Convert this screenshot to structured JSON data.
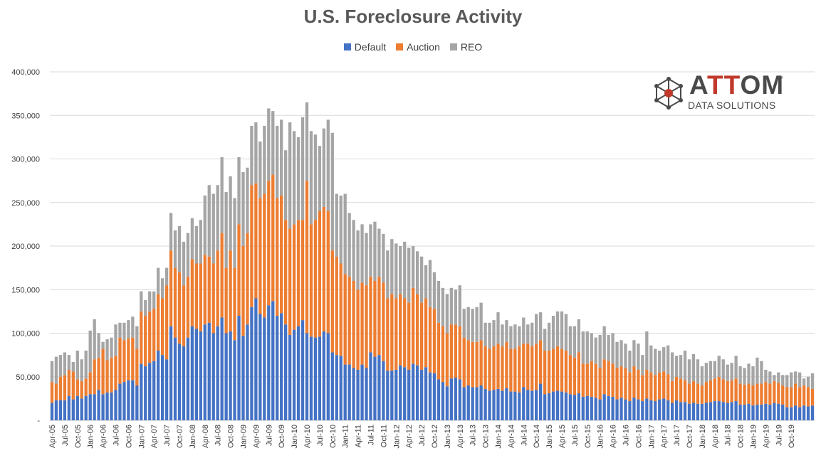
{
  "chart_data": {
    "type": "bar",
    "stacked": true,
    "title": "U.S. Foreclosure Activity",
    "legend_position": "top",
    "grid": true,
    "ylim": [
      0,
      400000
    ],
    "yticks": [
      "-",
      "50,000",
      "100,000",
      "150,000",
      "200,000",
      "250,000",
      "300,000",
      "350,000",
      "400,000"
    ],
    "x_tick_labels": [
      "Apr-05",
      "Jul-05",
      "Oct-05",
      "Jan-06",
      "Apr-06",
      "Jul-06",
      "Oct-06",
      "Jan-07",
      "Apr-07",
      "Jul-07",
      "Oct-07",
      "Jan-08",
      "Apr-08",
      "Jul-08",
      "Oct-08",
      "Jan-09",
      "Apr-09",
      "Jul-09",
      "Oct-09",
      "Jan-10",
      "Apr-10",
      "Jul-10",
      "Oct-10",
      "Jan-11",
      "Apr-11",
      "Jul-11",
      "Oct-11",
      "Jan-12",
      "Apr-12",
      "Jul-12",
      "Oct-12",
      "Jan-13",
      "Apr-13",
      "Jul-13",
      "Oct-13",
      "Jan-14",
      "Apr-14",
      "Jul-14",
      "Oct-14",
      "Jan-15",
      "Apr-15",
      "Jul-15",
      "Oct-15",
      "Jan-16",
      "Apr-16",
      "Jul-16",
      "Oct-16",
      "Jan-17",
      "Apr-17",
      "Jul-17",
      "Oct-17",
      "Jan-18",
      "Apr-18",
      "Jul-18",
      "Oct-18",
      "Jan-19",
      "Apr-19",
      "Jul-19",
      "Oct-19"
    ],
    "series": [
      {
        "name": "Default",
        "color": "#4472C4",
        "values": [
          20000,
          23000,
          23000,
          23000,
          28000,
          24000,
          28000,
          25000,
          28000,
          30000,
          30000,
          35000,
          30000,
          32000,
          32000,
          35000,
          42000,
          44000,
          46000,
          46000,
          40000,
          65000,
          62000,
          66000,
          68000,
          80000,
          75000,
          70000,
          108000,
          95000,
          88000,
          85000,
          95000,
          108000,
          105000,
          102000,
          110000,
          112000,
          100000,
          108000,
          118000,
          100000,
          102000,
          92000,
          120000,
          97000,
          110000,
          130000,
          140000,
          122000,
          118000,
          132000,
          137000,
          120000,
          123000,
          110000,
          98000,
          104000,
          108000,
          115000,
          100000,
          96000,
          95000,
          96000,
          102000,
          100000,
          78000,
          75000,
          74000,
          64000,
          64000,
          60000,
          58000,
          64000,
          60000,
          78000,
          73000,
          75000,
          68000,
          57000,
          57000,
          58000,
          63000,
          61000,
          58000,
          65000,
          63000,
          58000,
          61000,
          55000,
          54000,
          47000,
          44000,
          39000,
          48000,
          49000,
          47000,
          38000,
          40000,
          38000,
          38000,
          40000,
          36000,
          34000,
          35000,
          36000,
          34000,
          37000,
          33000,
          33000,
          32000,
          38000,
          35000,
          34000,
          35000,
          42000,
          30000,
          31000,
          33000,
          34000,
          33000,
          32000,
          30000,
          29000,
          31000,
          27000,
          28000,
          27000,
          26000,
          24000,
          30000,
          28000,
          27000,
          24000,
          26000,
          24000,
          22000,
          26000,
          24000,
          22000,
          25000,
          23000,
          22000,
          24000,
          25000,
          23000,
          20000,
          23000,
          21000,
          21000,
          19000,
          20000,
          19000,
          19000,
          20000,
          21000,
          22000,
          22000,
          21000,
          20000,
          21000,
          22000,
          18000,
          18000,
          19000,
          17000,
          18000,
          18000,
          19000,
          18000,
          20000,
          19000,
          18000,
          15000,
          15000,
          17000,
          15000,
          17000,
          16000,
          17000
        ],
        "cum_auction": [
          44000,
          42000,
          50000,
          52000,
          58000,
          56000,
          47000,
          45000,
          48000,
          55000,
          70000,
          72000,
          82000,
          69000,
          72000,
          74000,
          95000,
          92000,
          94000,
          95000,
          82000,
          125000,
          120000,
          125000,
          128000,
          145000,
          140000,
          155000,
          195000,
          175000,
          170000,
          155000,
          165000,
          185000,
          180000,
          180000,
          190000,
          188000,
          180000,
          195000,
          215000,
          175000,
          195000,
          175000,
          225000,
          200000,
          215000,
          270000,
          272000,
          255000,
          260000,
          275000,
          282000,
          255000,
          258000,
          230000,
          220000,
          225000,
          230000,
          230000,
          275000,
          225000,
          230000,
          240000,
          245000,
          240000,
          195000,
          188000,
          180000,
          168000,
          165000,
          160000,
          150000,
          158000,
          155000,
          165000,
          160000,
          165000,
          158000,
          140000,
          145000,
          140000,
          145000,
          140000,
          135000,
          152000,
          145000,
          135000,
          140000,
          130000,
          128000,
          112000,
          108000,
          100000,
          110000,
          110000,
          108000,
          95000,
          92000,
          90000,
          90000,
          92000,
          85000,
          82000,
          85000,
          88000,
          85000,
          90000,
          82000,
          82000,
          85000,
          88000,
          88000,
          85000,
          88000,
          92000,
          80000,
          80000,
          82000,
          85000,
          82000,
          80000,
          75000,
          72000,
          78000,
          65000,
          65000,
          68000,
          65000,
          60000,
          70000,
          68000,
          65000,
          60000,
          62000,
          60000,
          55000,
          62000,
          58000,
          52000,
          58000,
          55000,
          52000,
          55000,
          56000,
          53000,
          45000,
          50000,
          48000,
          46000,
          42000,
          45000,
          42000,
          40000,
          44000,
          46000,
          48000,
          50000,
          47000,
          45000,
          46000,
          48000,
          42000,
          41000,
          42000,
          40000,
          42000,
          42000,
          44000,
          42000,
          45000,
          43000,
          40000,
          38000,
          38000,
          42000,
          38000,
          40000,
          38000,
          36000
        ],
        "totals": [
          68000,
          73000,
          75000,
          78000,
          75000,
          67000,
          80000,
          70000,
          80000,
          103000,
          116000,
          100000,
          90000,
          93000,
          95000,
          110000,
          112000,
          112000,
          115000,
          119000,
          108000,
          148000,
          138000,
          148000,
          148000,
          175000,
          163000,
          175000,
          238000,
          218000,
          223000,
          205000,
          215000,
          232000,
          223000,
          230000,
          258000,
          270000,
          260000,
          270000,
          302000,
          262000,
          280000,
          255000,
          302000,
          285000,
          290000,
          338000,
          342000,
          320000,
          338000,
          358000,
          355000,
          338000,
          345000,
          310000,
          342000,
          332000,
          325000,
          348000,
          365000,
          332000,
          328000,
          315000,
          335000,
          345000,
          330000,
          260000,
          258000,
          260000,
          238000,
          230000,
          218000,
          225000,
          215000,
          225000,
          228000,
          220000,
          214000,
          195000,
          208000,
          203000,
          200000,
          205000,
          198000,
          200000,
          194000,
          188000,
          178000,
          184000,
          170000,
          160000,
          152000,
          145000,
          152000,
          150000,
          155000,
          128000,
          130000,
          128000,
          130000,
          135000,
          112000,
          112000,
          115000,
          124000,
          110000,
          115000,
          108000,
          110000,
          108000,
          118000,
          110000,
          112000,
          122000,
          124000,
          105000,
          112000,
          120000,
          125000,
          125000,
          122000,
          108000,
          108000,
          116000,
          102000,
          102000,
          100000,
          95000,
          98000,
          108000,
          98000,
          100000,
          90000,
          92000,
          88000,
          80000,
          92000,
          88000,
          75000,
          102000,
          86000,
          82000,
          80000,
          84000,
          86000,
          78000,
          74000,
          75000,
          80000,
          70000,
          76000,
          70000,
          62000,
          66000,
          68000,
          68000,
          74000,
          70000,
          64000,
          66000,
          74000,
          62000,
          60000,
          65000,
          62000,
          72000,
          68000,
          58000,
          56000,
          52000,
          55000,
          52000,
          52000,
          55000,
          56000,
          55000,
          48000,
          50000,
          54000,
          48000,
          50000,
          54000,
          48000
        ]
      }
    ]
  },
  "legend": {
    "items": [
      {
        "label": "Default",
        "color": "#4472C4"
      },
      {
        "label": "Auction",
        "color": "#ED7D31"
      },
      {
        "label": "REO",
        "color": "#A5A5A5"
      }
    ]
  },
  "logo": {
    "name_prefix": "A",
    "name_accent": "TT",
    "name_suffix": "OM",
    "trademark": "™",
    "subtitle": "DATA SOLUTIONS",
    "icon": "network-hub-icon"
  }
}
